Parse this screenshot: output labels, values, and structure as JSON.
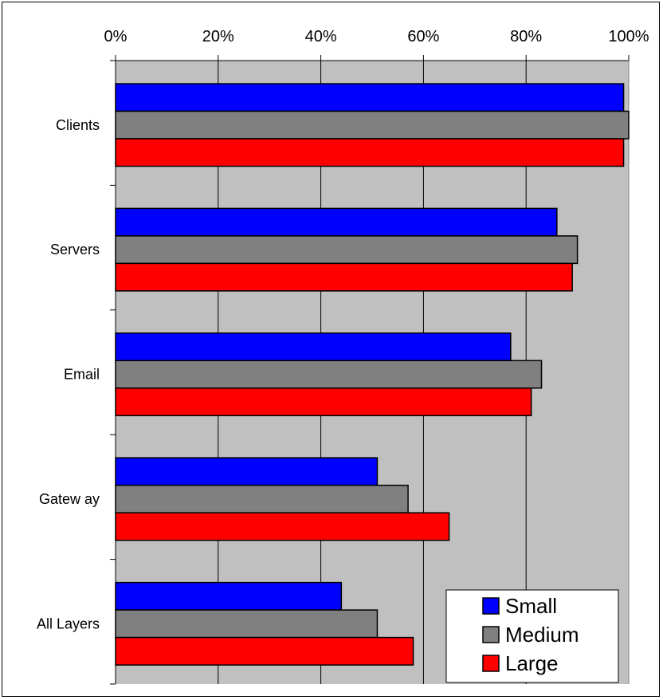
{
  "chart_data": {
    "type": "bar",
    "orientation": "horizontal",
    "categories": [
      "Clients",
      "Servers",
      "Email",
      "Gatew ay",
      "All Layers"
    ],
    "series": [
      {
        "name": "Small",
        "color": "#0000ff",
        "values": [
          99,
          86,
          77,
          51,
          44
        ]
      },
      {
        "name": "Medium",
        "color": "#808080",
        "values": [
          100,
          90,
          83,
          57,
          51
        ]
      },
      {
        "name": "Large",
        "color": "#ff0000",
        "values": [
          99,
          89,
          81,
          65,
          58
        ]
      }
    ],
    "xlim": [
      0,
      100
    ],
    "x_ticks": [
      "0%",
      "20%",
      "40%",
      "60%",
      "80%",
      "100%"
    ],
    "x_axis_position": "top",
    "plot_background": "#c0c0c0",
    "grid": true,
    "legend_position": "bottom-right",
    "title": "",
    "xlabel": "",
    "ylabel": ""
  }
}
